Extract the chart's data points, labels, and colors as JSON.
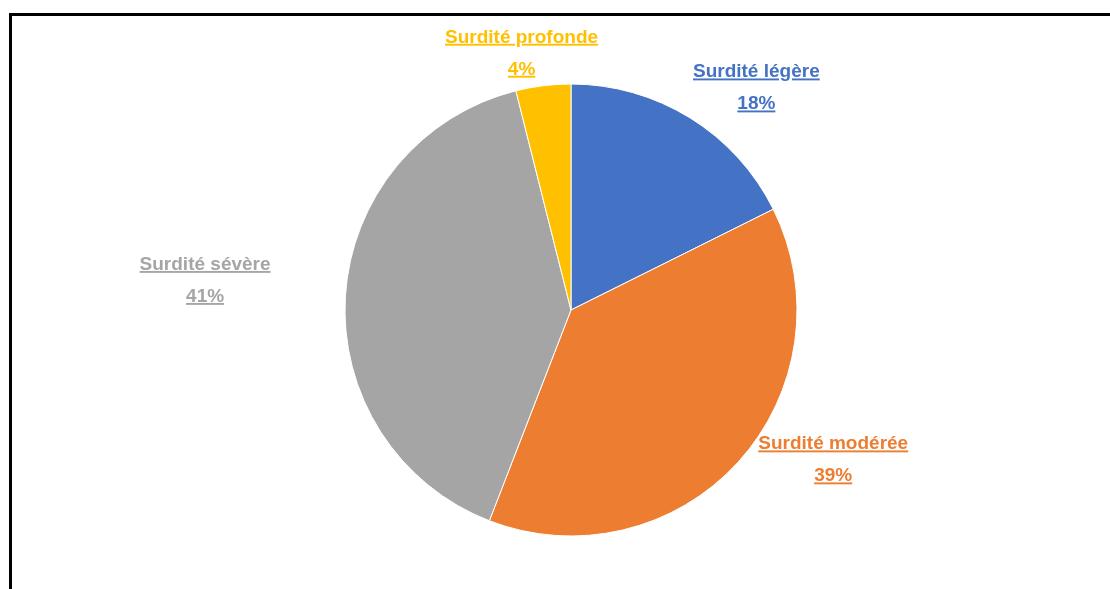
{
  "chart_data": {
    "type": "pie",
    "categories": [
      "Surdité légère",
      "Surdité modérée",
      "Surdité sévère",
      "Surdité profonde"
    ],
    "values": [
      18,
      39,
      41,
      4
    ],
    "value_labels": [
      "18%",
      "39%",
      "41%",
      "4%"
    ],
    "colors": [
      "#4472c4",
      "#ed7d31",
      "#a5a5a5",
      "#ffc000"
    ],
    "legend": false
  }
}
